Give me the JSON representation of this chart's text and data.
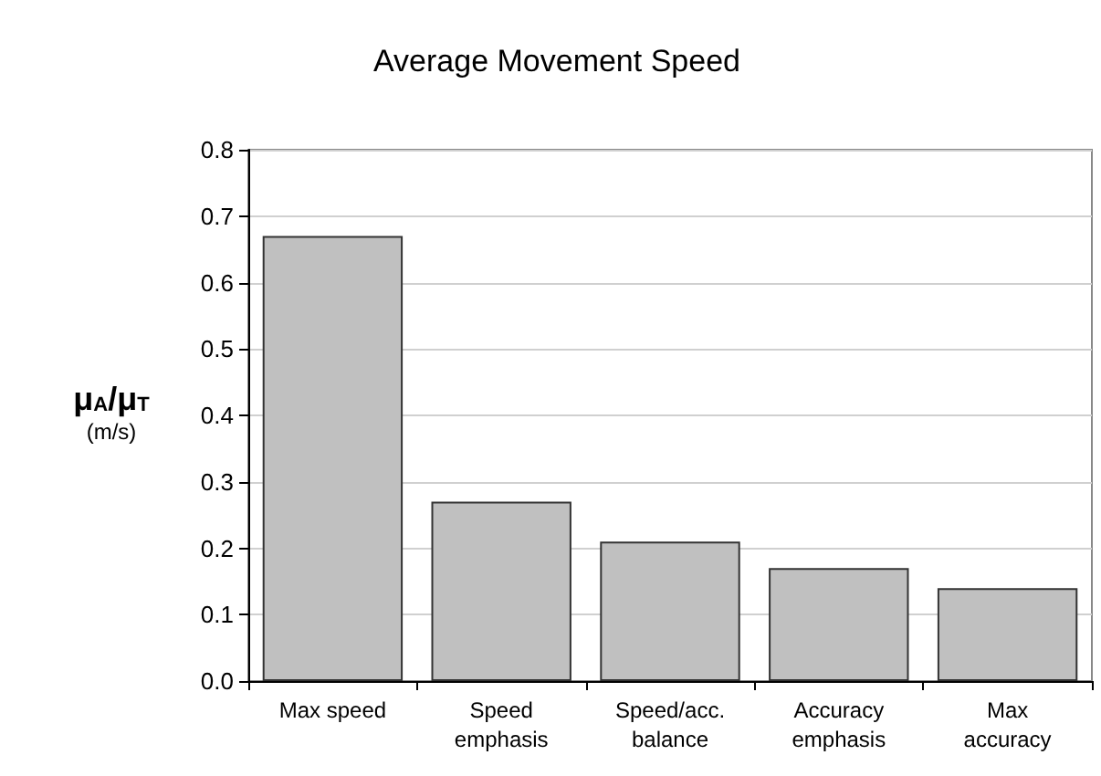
{
  "chart_data": {
    "type": "bar",
    "title": "Average Movement Speed",
    "ylabel": "μ$_{A}$/μ$_{T}$\n(m/s)",
    "categories": [
      "Max speed",
      "Speed\nemphasis",
      "Speed/acc.\nbalance",
      "Accuracy\nemphasis",
      "Max\naccuracy"
    ],
    "values": [
      0.67,
      0.27,
      0.21,
      0.17,
      0.14
    ],
    "color": "#c0c0c0",
    "ylim": [
      0,
      0.8
    ],
    "yticks": [
      {
        "value": 0,
        "label": "0.0"
      },
      0.1,
      0.2,
      0.3,
      0.4,
      0.5,
      0.6,
      0.7,
      0.8
    ],
    "grid": "y"
  }
}
